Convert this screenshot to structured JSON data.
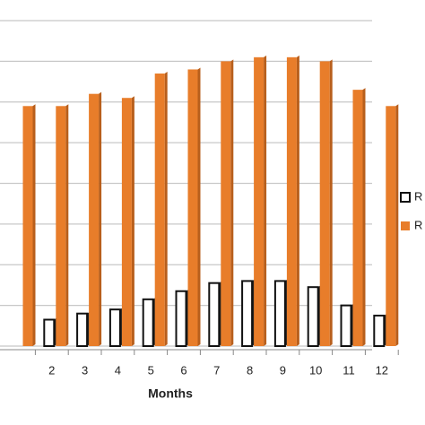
{
  "chart_data": {
    "type": "bar",
    "x_label": "Months",
    "categories": [
      null,
      "2",
      "3",
      "4",
      "5",
      "6",
      "7",
      "8",
      "9",
      "10",
      "11",
      "12"
    ],
    "series": [
      {
        "name": "R",
        "color": "#ffffff",
        "values": [
          null,
          0.65,
          0.8,
          0.9,
          1.15,
          1.35,
          1.55,
          1.6,
          1.6,
          1.45,
          1.0,
          0.75
        ]
      },
      {
        "name": "R",
        "color": "#e87d2a",
        "values": [
          5.9,
          5.9,
          6.2,
          6.1,
          6.7,
          6.8,
          7.0,
          7.1,
          7.1,
          7.0,
          6.3,
          5.9
        ]
      }
    ],
    "ylim": [
      0,
      8
    ],
    "grid": true
  }
}
